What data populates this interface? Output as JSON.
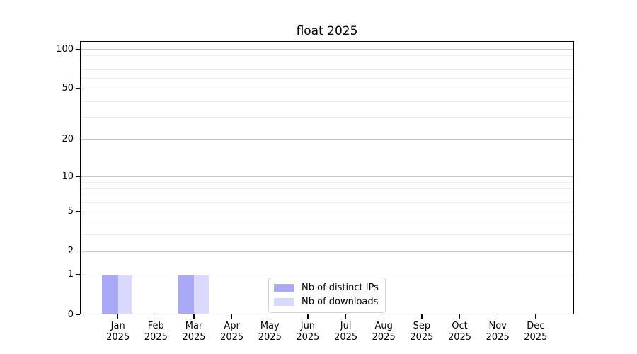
{
  "chart_data": {
    "type": "bar",
    "title": "float 2025",
    "xlabel": "",
    "ylabel": "",
    "categories": [
      "Jan",
      "Feb",
      "Mar",
      "Apr",
      "May",
      "Jun",
      "Jul",
      "Aug",
      "Sep",
      "Oct",
      "Nov",
      "Dec"
    ],
    "x_tick_year": "2025",
    "series": [
      {
        "name": "Nb of distinct IPs",
        "color": "#a9a9f8",
        "values": [
          1,
          0,
          1,
          0,
          0,
          0,
          0,
          0,
          0,
          0,
          0,
          0
        ]
      },
      {
        "name": "Nb of downloads",
        "color": "#d9d9fb",
        "values": [
          1,
          0,
          1,
          0,
          0,
          0,
          0,
          0,
          0,
          0,
          0,
          0
        ]
      }
    ],
    "y_scale": "log10(1+y)",
    "y_tick_values": [
      0,
      1,
      2,
      5,
      10,
      20,
      50,
      100
    ],
    "y_minor_grid_values": [
      3,
      4,
      6,
      7,
      8,
      9,
      30,
      40,
      60,
      70,
      80,
      90
    ],
    "ylim": [
      0,
      115
    ],
    "grid": true,
    "legend_position": "lower center"
  },
  "colors": {
    "grid_major": "#c8c8c8",
    "grid_minor": "#ebebeb",
    "spine": "#000000",
    "text": "#000000",
    "legend_border": "#d2d2d2",
    "background": "#ffffff"
  }
}
